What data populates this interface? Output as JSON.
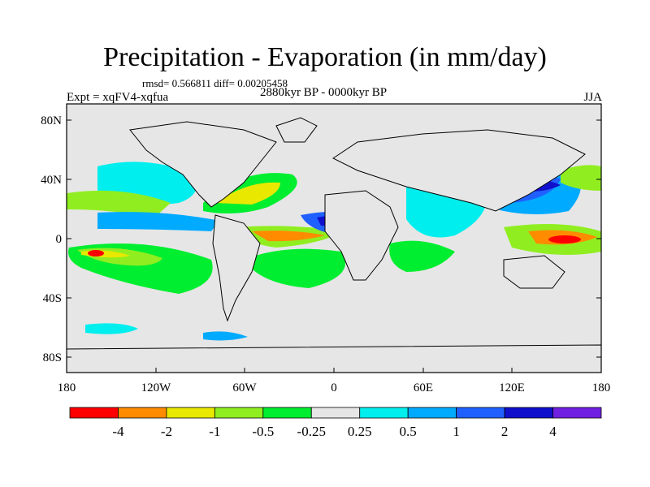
{
  "title": "Precipitation - Evaporation (in mm/day)",
  "stats": "rmsd= 0.566811 diff= 0.00205458",
  "experiment": "Expt = xqFV4-xqfua",
  "period": "2880kyr BP - 0000kyr BP",
  "season": "JJA",
  "map": {
    "ocean_fill": "#e6e6e6",
    "lat_ticks": [
      "80N",
      "40N",
      "0",
      "40S",
      "80S"
    ],
    "lon_ticks": [
      "180",
      "120W",
      "60W",
      "0",
      "60E",
      "120E",
      "180"
    ]
  },
  "colorbar": {
    "colors": [
      "#ff0000",
      "#ff8c00",
      "#e8e800",
      "#90ee20",
      "#00ee30",
      "#e6e6e6",
      "#00eeee",
      "#00aaff",
      "#2060ff",
      "#1010cc",
      "#7020e0"
    ],
    "labels": [
      "-4",
      "-2",
      "-1",
      "-0.5",
      "-0.25",
      "0.25",
      "0.5",
      "1",
      "2",
      "4"
    ]
  }
}
